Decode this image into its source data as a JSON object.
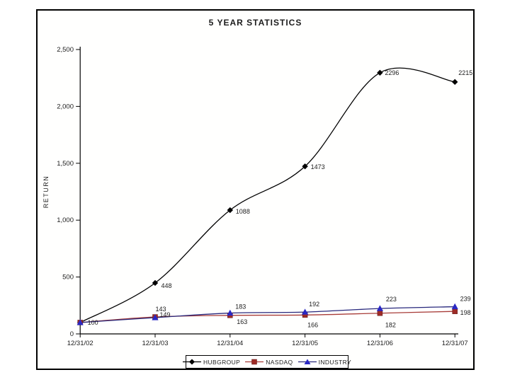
{
  "chart_data": {
    "type": "line",
    "title": "5 YEAR STATISTICS",
    "xlabel": "",
    "ylabel": "RETURN",
    "categories": [
      "12/31/02",
      "12/31/03",
      "12/31/04",
      "12/31/05",
      "12/31/06",
      "12/31/07"
    ],
    "ylim": [
      0,
      2500
    ],
    "grid": false,
    "legend_position": "bottom",
    "y_ticks": [
      {
        "value": 0,
        "label": "0"
      },
      {
        "value": 500,
        "label": "500"
      },
      {
        "value": 1000,
        "label": "1,000"
      },
      {
        "value": 1500,
        "label": "1,500"
      },
      {
        "value": 2000,
        "label": "2,000"
      },
      {
        "value": 2500,
        "label": "2,500"
      }
    ],
    "series": [
      {
        "name": "HUBGROUP",
        "marker": "diamond",
        "marker_color": "#000000",
        "line_color": "#000000",
        "values": [
          100,
          448,
          1088,
          1473,
          2296,
          2215
        ],
        "point_labels": [
          "100",
          "448",
          "1088",
          "1473",
          "2296",
          "2215"
        ]
      },
      {
        "name": "NASDAQ",
        "marker": "square",
        "marker_color": "#9e2b26",
        "line_color": "#a83c38",
        "values": [
          100,
          149,
          163,
          166,
          182,
          198
        ],
        "point_labels": [
          null,
          "149",
          "163",
          "166",
          "182",
          "198"
        ]
      },
      {
        "name": "INDUSTRY",
        "marker": "triangle",
        "marker_color": "#2a28c4",
        "line_color": "#28287c",
        "values": [
          100,
          143,
          183,
          192,
          223,
          239
        ],
        "point_labels": [
          null,
          "143",
          "183",
          "192",
          "223",
          "239"
        ]
      }
    ]
  }
}
